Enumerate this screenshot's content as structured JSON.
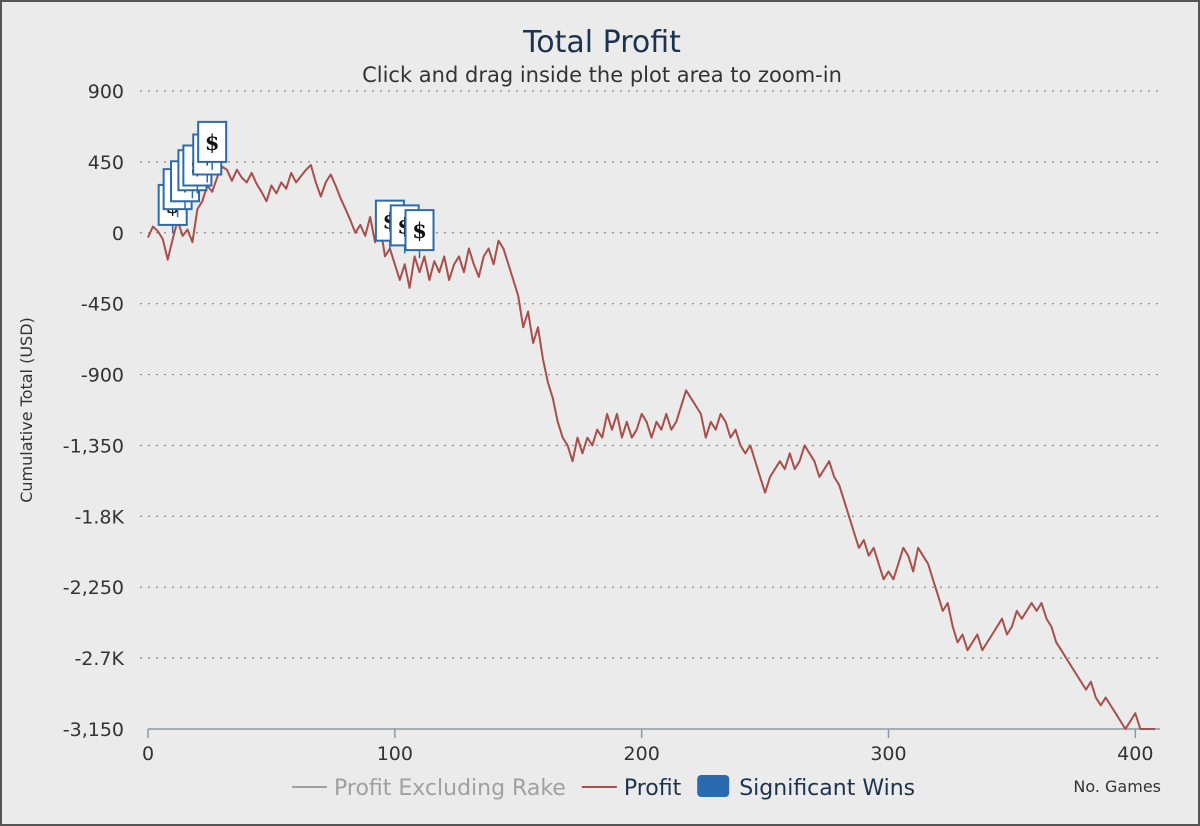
{
  "chart_data": {
    "type": "line",
    "title": "Total Profit",
    "subtitle": "Click and drag inside the plot area to zoom-in",
    "ylabel": "Cumulative Total (USD)",
    "xlabel": "No. Games",
    "xlim": [
      0,
      410
    ],
    "ylim": [
      -3150,
      900
    ],
    "yticks": [
      900,
      450,
      0,
      -450,
      -900,
      -1350,
      -1800,
      -2250,
      -2700,
      -3150
    ],
    "ytick_labels": [
      "900",
      "450",
      "0",
      "-450",
      "-900",
      "-1,350",
      "-1.8K",
      "-2,250",
      "-2.7K",
      "-3,150"
    ],
    "xticks": [
      0,
      100,
      200,
      300,
      400
    ],
    "xtick_labels": [
      "0",
      "100",
      "200",
      "300",
      "400"
    ],
    "grid": true,
    "legend_position": "bottom-center",
    "legend": [
      {
        "name": "Profit Excluding Rake",
        "color": "#a0a0a0",
        "kind": "line",
        "visible": false
      },
      {
        "name": "Profit",
        "color": "#a84e4b",
        "kind": "line",
        "visible": true
      },
      {
        "name": "Significant Wins",
        "color": "#2a6bb0",
        "kind": "box",
        "visible": true
      }
    ],
    "series": [
      {
        "name": "Profit",
        "color": "#a84e4b",
        "points": [
          [
            0,
            -30
          ],
          [
            2,
            40
          ],
          [
            4,
            10
          ],
          [
            6,
            -40
          ],
          [
            8,
            -170
          ],
          [
            10,
            -40
          ],
          [
            12,
            80
          ],
          [
            14,
            -20
          ],
          [
            16,
            20
          ],
          [
            18,
            -60
          ],
          [
            20,
            150
          ],
          [
            22,
            200
          ],
          [
            24,
            300
          ],
          [
            26,
            260
          ],
          [
            28,
            350
          ],
          [
            30,
            420
          ],
          [
            32,
            400
          ],
          [
            34,
            330
          ],
          [
            36,
            400
          ],
          [
            38,
            350
          ],
          [
            40,
            320
          ],
          [
            42,
            380
          ],
          [
            44,
            310
          ],
          [
            46,
            260
          ],
          [
            48,
            200
          ],
          [
            50,
            300
          ],
          [
            52,
            250
          ],
          [
            54,
            320
          ],
          [
            56,
            280
          ],
          [
            58,
            380
          ],
          [
            60,
            320
          ],
          [
            62,
            360
          ],
          [
            64,
            400
          ],
          [
            66,
            430
          ],
          [
            68,
            320
          ],
          [
            70,
            230
          ],
          [
            72,
            320
          ],
          [
            74,
            370
          ],
          [
            76,
            300
          ],
          [
            78,
            220
          ],
          [
            80,
            150
          ],
          [
            82,
            80
          ],
          [
            84,
            0
          ],
          [
            86,
            50
          ],
          [
            88,
            -20
          ],
          [
            90,
            100
          ],
          [
            92,
            -60
          ],
          [
            94,
            50
          ],
          [
            96,
            -150
          ],
          [
            98,
            -100
          ],
          [
            100,
            -200
          ],
          [
            102,
            -300
          ],
          [
            104,
            -200
          ],
          [
            106,
            -350
          ],
          [
            108,
            -150
          ],
          [
            110,
            -250
          ],
          [
            112,
            -150
          ],
          [
            114,
            -300
          ],
          [
            116,
            -180
          ],
          [
            118,
            -250
          ],
          [
            120,
            -150
          ],
          [
            122,
            -300
          ],
          [
            124,
            -200
          ],
          [
            126,
            -150
          ],
          [
            128,
            -250
          ],
          [
            130,
            -100
          ],
          [
            132,
            -200
          ],
          [
            134,
            -280
          ],
          [
            136,
            -150
          ],
          [
            138,
            -100
          ],
          [
            140,
            -200
          ],
          [
            142,
            -50
          ],
          [
            144,
            -100
          ],
          [
            146,
            -200
          ],
          [
            148,
            -300
          ],
          [
            150,
            -400
          ],
          [
            152,
            -600
          ],
          [
            154,
            -500
          ],
          [
            156,
            -700
          ],
          [
            158,
            -600
          ],
          [
            160,
            -800
          ],
          [
            162,
            -950
          ],
          [
            164,
            -1050
          ],
          [
            166,
            -1200
          ],
          [
            168,
            -1300
          ],
          [
            170,
            -1350
          ],
          [
            172,
            -1450
          ],
          [
            174,
            -1300
          ],
          [
            176,
            -1400
          ],
          [
            178,
            -1300
          ],
          [
            180,
            -1350
          ],
          [
            182,
            -1250
          ],
          [
            184,
            -1300
          ],
          [
            186,
            -1150
          ],
          [
            188,
            -1250
          ],
          [
            190,
            -1150
          ],
          [
            192,
            -1300
          ],
          [
            194,
            -1200
          ],
          [
            196,
            -1300
          ],
          [
            198,
            -1250
          ],
          [
            200,
            -1150
          ],
          [
            202,
            -1200
          ],
          [
            204,
            -1300
          ],
          [
            206,
            -1200
          ],
          [
            208,
            -1250
          ],
          [
            210,
            -1150
          ],
          [
            212,
            -1250
          ],
          [
            214,
            -1200
          ],
          [
            216,
            -1100
          ],
          [
            218,
            -1000
          ],
          [
            220,
            -1050
          ],
          [
            222,
            -1100
          ],
          [
            224,
            -1150
          ],
          [
            226,
            -1300
          ],
          [
            228,
            -1200
          ],
          [
            230,
            -1250
          ],
          [
            232,
            -1150
          ],
          [
            234,
            -1200
          ],
          [
            236,
            -1300
          ],
          [
            238,
            -1250
          ],
          [
            240,
            -1350
          ],
          [
            242,
            -1400
          ],
          [
            244,
            -1350
          ],
          [
            246,
            -1450
          ],
          [
            248,
            -1550
          ],
          [
            250,
            -1650
          ],
          [
            252,
            -1550
          ],
          [
            254,
            -1500
          ],
          [
            256,
            -1450
          ],
          [
            258,
            -1500
          ],
          [
            260,
            -1400
          ],
          [
            262,
            -1500
          ],
          [
            264,
            -1450
          ],
          [
            266,
            -1350
          ],
          [
            268,
            -1400
          ],
          [
            270,
            -1450
          ],
          [
            272,
            -1550
          ],
          [
            274,
            -1500
          ],
          [
            276,
            -1450
          ],
          [
            278,
            -1550
          ],
          [
            280,
            -1600
          ],
          [
            282,
            -1700
          ],
          [
            284,
            -1800
          ],
          [
            286,
            -1900
          ],
          [
            288,
            -2000
          ],
          [
            290,
            -1950
          ],
          [
            292,
            -2050
          ],
          [
            294,
            -2000
          ],
          [
            296,
            -2100
          ],
          [
            298,
            -2200
          ],
          [
            300,
            -2150
          ],
          [
            302,
            -2200
          ],
          [
            304,
            -2100
          ],
          [
            306,
            -2000
          ],
          [
            308,
            -2050
          ],
          [
            310,
            -2150
          ],
          [
            312,
            -2000
          ],
          [
            314,
            -2050
          ],
          [
            316,
            -2100
          ],
          [
            318,
            -2200
          ],
          [
            320,
            -2300
          ],
          [
            322,
            -2400
          ],
          [
            324,
            -2350
          ],
          [
            326,
            -2500
          ],
          [
            328,
            -2600
          ],
          [
            330,
            -2550
          ],
          [
            332,
            -2650
          ],
          [
            334,
            -2600
          ],
          [
            336,
            -2550
          ],
          [
            338,
            -2650
          ],
          [
            340,
            -2600
          ],
          [
            342,
            -2550
          ],
          [
            344,
            -2500
          ],
          [
            346,
            -2450
          ],
          [
            348,
            -2550
          ],
          [
            350,
            -2500
          ],
          [
            352,
            -2400
          ],
          [
            354,
            -2450
          ],
          [
            356,
            -2400
          ],
          [
            358,
            -2350
          ],
          [
            360,
            -2400
          ],
          [
            362,
            -2350
          ],
          [
            364,
            -2450
          ],
          [
            366,
            -2500
          ],
          [
            368,
            -2600
          ],
          [
            370,
            -2650
          ],
          [
            372,
            -2700
          ],
          [
            374,
            -2750
          ],
          [
            376,
            -2800
          ],
          [
            378,
            -2850
          ],
          [
            380,
            -2900
          ],
          [
            382,
            -2850
          ],
          [
            384,
            -2950
          ],
          [
            386,
            -3000
          ],
          [
            388,
            -2950
          ],
          [
            390,
            -3000
          ],
          [
            392,
            -3050
          ],
          [
            394,
            -3100
          ],
          [
            396,
            -3150
          ],
          [
            398,
            -3100
          ],
          [
            400,
            -3050
          ],
          [
            402,
            -3150
          ],
          [
            404,
            -3200
          ],
          [
            406,
            -3250
          ],
          [
            408,
            -3270
          ]
        ]
      }
    ],
    "significant_wins": [
      {
        "x": 10,
        "y": 50,
        "symbol": "$"
      },
      {
        "x": 12,
        "y": 150,
        "symbol": "$"
      },
      {
        "x": 15,
        "y": 200,
        "symbol": "$"
      },
      {
        "x": 18,
        "y": 270,
        "symbol": "$"
      },
      {
        "x": 20,
        "y": 300,
        "symbol": "$"
      },
      {
        "x": 24,
        "y": 370,
        "symbol": "$"
      },
      {
        "x": 26,
        "y": 450,
        "symbol": "$"
      },
      {
        "x": 98,
        "y": -50,
        "symbol": "$"
      },
      {
        "x": 104,
        "y": -80,
        "symbol": "$"
      },
      {
        "x": 110,
        "y": -110,
        "symbol": "$"
      }
    ]
  }
}
